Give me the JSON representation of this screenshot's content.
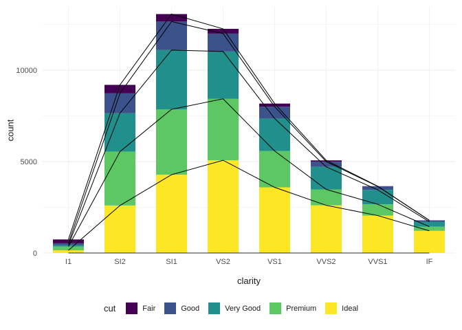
{
  "chart_data": {
    "type": "bar",
    "subtype": "stacked-bars-with-cumulative-lines",
    "title": "",
    "xlabel": "clarity",
    "ylabel": "count",
    "categories": [
      "I1",
      "SI2",
      "SI1",
      "VS2",
      "VS1",
      "VVS2",
      "VVS1",
      "IF"
    ],
    "series": [
      {
        "name": "Ideal",
        "color": "#FDE725",
        "values": [
          146,
          2598,
          4282,
          5071,
          3589,
          2606,
          2047,
          1212
        ]
      },
      {
        "name": "Premium",
        "color": "#5DC863",
        "values": [
          205,
          2949,
          3575,
          3357,
          1989,
          870,
          616,
          230
        ]
      },
      {
        "name": "Very Good",
        "color": "#21908C",
        "values": [
          84,
          2100,
          3240,
          2591,
          1775,
          1235,
          789,
          268
        ]
      },
      {
        "name": "Good",
        "color": "#3B528B",
        "values": [
          96,
          1081,
          1560,
          978,
          648,
          286,
          186,
          71
        ]
      },
      {
        "name": "Fair",
        "color": "#440154",
        "values": [
          210,
          466,
          408,
          261,
          170,
          69,
          17,
          9
        ]
      }
    ],
    "stack_order_bottom_to_top": [
      "Ideal",
      "Premium",
      "Very Good",
      "Good",
      "Fair"
    ],
    "totals": [
      741,
      9194,
      13065,
      12258,
      8171,
      5066,
      3655,
      1790
    ],
    "legend": {
      "title": "cut",
      "position": "bottom",
      "order": [
        "Fair",
        "Good",
        "Very Good",
        "Premium",
        "Ideal"
      ]
    },
    "yticks": [
      0,
      5000,
      10000
    ],
    "yminor": [
      2500,
      7500,
      12500
    ],
    "ylim": [
      0,
      13700
    ],
    "grid": true,
    "line_color": "#000000",
    "axis_text_color": "#4D4D4D",
    "grid_major_color": "#EBEBEB",
    "grid_minor_color": "#F5F5F5",
    "background": "#FFFFFF"
  }
}
